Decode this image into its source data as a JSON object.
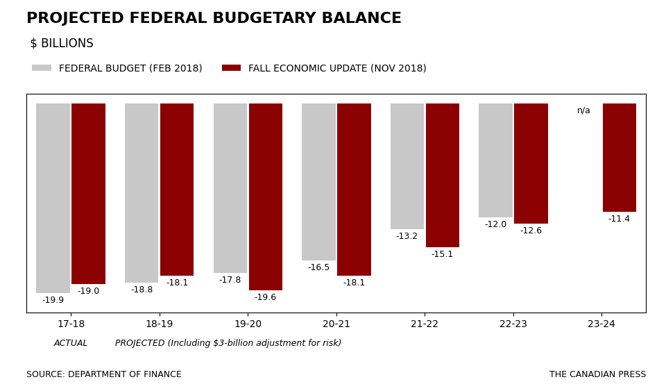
{
  "chart_data": {
    "type": "bar",
    "title": "PROJECTED FEDERAL BUDGETARY BALANCE",
    "subtitle": " $ BILLIONS",
    "categories": [
      "17-18",
      "18-19",
      "19-20",
      "20-21",
      "21-22",
      "22-23",
      "23-24"
    ],
    "series": [
      {
        "name": "FEDERAL BUDGET (FEB 2018)",
        "color": "#c8c8c8",
        "values": [
          -19.9,
          -18.8,
          -17.8,
          -16.5,
          -13.2,
          -12.0,
          null
        ],
        "value_labels": [
          "-19.9",
          "-18.8",
          "-17.8",
          "-16.5",
          "-13.2",
          "-12.0",
          "n/a"
        ]
      },
      {
        "name": "FALL ECONOMIC UPDATE (NOV 2018)",
        "color": "#8b0000",
        "values": [
          -19.0,
          -18.1,
          -19.6,
          -18.1,
          -15.1,
          -12.6,
          -11.4
        ]
      }
    ],
    "ylim": [
      -22,
      1
    ],
    "tick_labels": "x",
    "data_labels": true,
    "legend": "upper left",
    "annotations": [
      "ACTUAL",
      "PROJECTED (Including $3-billion adjustment for risk)",
      "SOURCE: DEPARTMENT OF FINANCE",
      "THE CANADIAN PRESS"
    ]
  }
}
